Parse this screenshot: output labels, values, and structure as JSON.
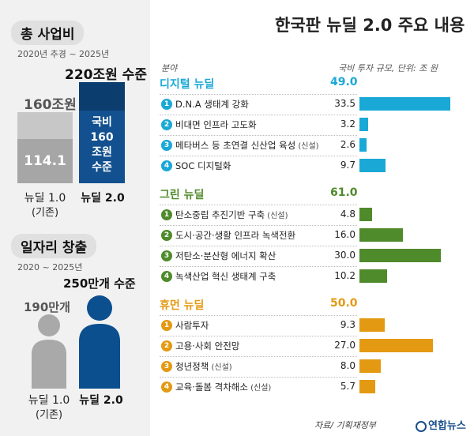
{
  "title": "한국판 뉴딜 2.0 주요 내용",
  "total_budget": {
    "heading": "총 사업비",
    "period": "2020년 추경 ~ 2025년",
    "bar1": {
      "name": "뉴딜 1.0",
      "note": "(기존)",
      "total_label": "160조원",
      "inner_value": "114.1"
    },
    "bar2": {
      "name": "뉴딜 2.0",
      "total_label": "220조원 수준",
      "inner_label": "국비\n160\n조원\n수준"
    }
  },
  "jobs": {
    "heading": "일자리 창출",
    "period": "2020 ~ 2025년",
    "person1": {
      "name": "뉴딜 1.0",
      "note": "(기존)",
      "label": "190만개"
    },
    "person2": {
      "name": "뉴딜 2.0",
      "label": "250만개 수준"
    }
  },
  "table_header": {
    "category": "분야",
    "unit": "국비 투자 규모, 단위: 조 원"
  },
  "source": "자료/ 기획재정부",
  "logo_text": "연합뉴스",
  "colors": {
    "digital": "#1aa8d6",
    "green": "#4f8a2b",
    "human": "#e39a12",
    "navy": "#0b3d6e"
  },
  "chart_data": {
    "type": "bar",
    "orientation": "horizontal",
    "unit": "조 원",
    "sections": [
      {
        "name": "디지털 뉴딜",
        "total": 49.0,
        "color_key": "digital",
        "items": [
          {
            "num": "1",
            "label": "D.N.A 생태계 강화",
            "tag": "",
            "value": 33.5
          },
          {
            "num": "2",
            "label": "비대면 인프라 고도화",
            "tag": "",
            "value": 3.2
          },
          {
            "num": "3",
            "label": "메타버스 등 초연결 신산업 육성",
            "tag": "(신설)",
            "value": 2.6
          },
          {
            "num": "4",
            "label": "SOC 디지털화",
            "tag": "",
            "value": 9.7
          }
        ]
      },
      {
        "name": "그린 뉴딜",
        "total": 61.0,
        "color_key": "green",
        "items": [
          {
            "num": "1",
            "label": "탄소중립 추진기반 구축",
            "tag": "(신설)",
            "value": 4.8
          },
          {
            "num": "2",
            "label": "도시·공간·생활 인프라 녹색전환",
            "tag": "",
            "value": 16.0
          },
          {
            "num": "3",
            "label": "저탄소·분산형 에너지 확산",
            "tag": "",
            "value": 30.0
          },
          {
            "num": "4",
            "label": "녹색산업 혁신 생태계 구축",
            "tag": "",
            "value": 10.2
          }
        ]
      },
      {
        "name": "휴먼 뉴딜",
        "total": 50.0,
        "color_key": "human",
        "items": [
          {
            "num": "1",
            "label": "사람투자",
            "tag": "",
            "value": 9.3
          },
          {
            "num": "2",
            "label": "고용·사회 안전망",
            "tag": "",
            "value": 27.0
          },
          {
            "num": "3",
            "label": "청년정책",
            "tag": "(신설)",
            "value": 8.0
          },
          {
            "num": "4",
            "label": "교육·돌봄 격차해소",
            "tag": "(신설)",
            "value": 5.7
          }
        ]
      }
    ]
  }
}
